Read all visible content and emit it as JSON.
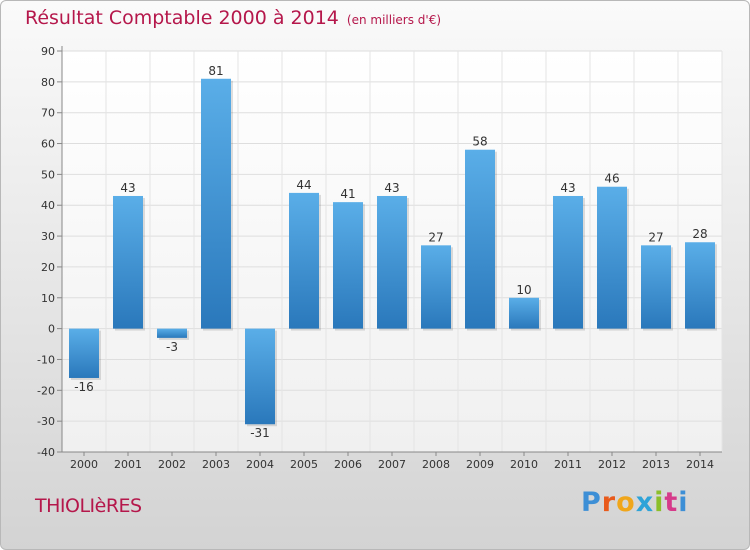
{
  "header": {
    "title": "Résultat Comptable 2000 à 2014",
    "unit": "(en milliers d'€)"
  },
  "footer": {
    "commune": "THIOLIèRES",
    "logo": "Proxiti"
  },
  "colors": {
    "title": "#b5174b",
    "bar_top": "#5aaee8",
    "bar_bottom": "#2a78bb"
  },
  "chart_data": {
    "type": "bar",
    "title": "Résultat Comptable 2000 à 2014",
    "subtitle": "(en milliers d'€)",
    "categories": [
      "2000",
      "2001",
      "2002",
      "2003",
      "2004",
      "2005",
      "2006",
      "2007",
      "2008",
      "2009",
      "2010",
      "2011",
      "2012",
      "2013",
      "2014"
    ],
    "values": [
      -16,
      43,
      -3,
      81,
      -31,
      44,
      41,
      43,
      27,
      58,
      10,
      43,
      46,
      27,
      28
    ],
    "ylim": [
      -40,
      90
    ],
    "yticks": [
      -40,
      -30,
      -20,
      -10,
      0,
      10,
      20,
      30,
      40,
      50,
      60,
      70,
      80,
      90
    ],
    "grid": true
  }
}
